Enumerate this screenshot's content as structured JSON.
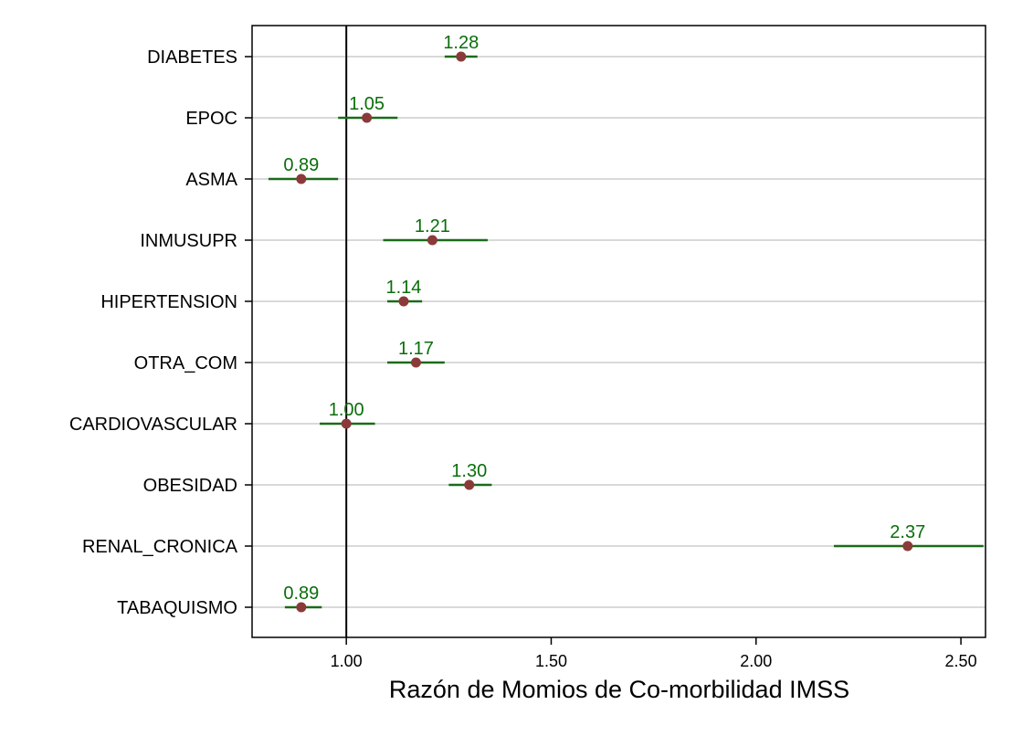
{
  "chart_data": {
    "type": "scatter",
    "subtype": "forest-plot",
    "title": "",
    "xlabel": "Razón de Momios de Co-morbilidad IMSS",
    "ylabel": "",
    "xlim": [
      0.77,
      2.56
    ],
    "reference_line": 1.0,
    "x_ticks": [
      1.0,
      1.5,
      2.0,
      2.5
    ],
    "x_tick_labels": [
      "1.00",
      "1.50",
      "2.00",
      "2.50"
    ],
    "grid": "horizontal",
    "colors": {
      "point": "#8b3a3a",
      "interval": "#1a6b1a",
      "value_label": "#0a6e0a",
      "grid": "#d9d9d9",
      "reference": "#000000"
    },
    "rows": [
      {
        "label": "DIABETES",
        "value": 1.28,
        "value_label": "1.28",
        "ci": [
          1.24,
          1.32
        ]
      },
      {
        "label": "EPOC",
        "value": 1.05,
        "value_label": "1.05",
        "ci": [
          0.98,
          1.125
        ]
      },
      {
        "label": "ASMA",
        "value": 0.89,
        "value_label": "0.89",
        "ci": [
          0.81,
          0.98
        ]
      },
      {
        "label": "INMUSUPR",
        "value": 1.21,
        "value_label": "1.21",
        "ci": [
          1.09,
          1.345
        ]
      },
      {
        "label": "HIPERTENSION",
        "value": 1.14,
        "value_label": "1.14",
        "ci": [
          1.1,
          1.185
        ]
      },
      {
        "label": "OTRA_COM",
        "value": 1.17,
        "value_label": "1.17",
        "ci": [
          1.1,
          1.24
        ]
      },
      {
        "label": "CARDIOVASCULAR",
        "value": 1.0,
        "value_label": "1.00",
        "ci": [
          0.935,
          1.07
        ]
      },
      {
        "label": "OBESIDAD",
        "value": 1.3,
        "value_label": "1.30",
        "ci": [
          1.25,
          1.355
        ]
      },
      {
        "label": "RENAL_CRONICA",
        "value": 2.37,
        "value_label": "2.37",
        "ci": [
          2.19,
          2.555
        ]
      },
      {
        "label": "TABAQUISMO",
        "value": 0.89,
        "value_label": "0.89",
        "ci": [
          0.85,
          0.94
        ]
      }
    ]
  }
}
